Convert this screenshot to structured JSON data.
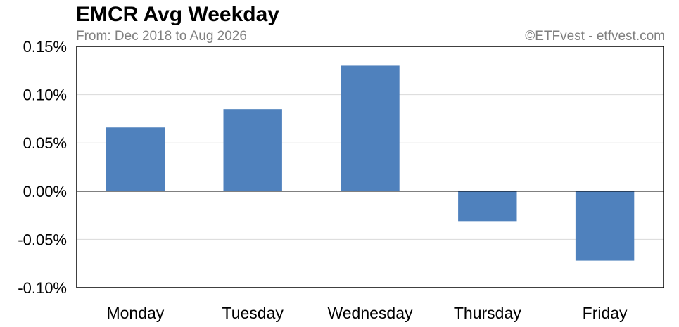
{
  "chart_data": {
    "type": "bar",
    "title": "EMCR Avg Weekday",
    "subtitle": "From: Dec 2018 to Aug 2026",
    "credit": "©ETFvest - etfvest.com",
    "categories": [
      "Monday",
      "Tuesday",
      "Wednesday",
      "Thursday",
      "Friday"
    ],
    "values": [
      0.066,
      0.085,
      0.13,
      -0.031,
      -0.072
    ],
    "value_unit": "%",
    "ylim": [
      -0.1,
      0.15
    ],
    "yticks": [
      "0.15%",
      "0.10%",
      "0.05%",
      "0.00%",
      "-0.05%",
      "-0.10%"
    ],
    "ytick_values": [
      0.15,
      0.1,
      0.05,
      0.0,
      -0.05,
      -0.1
    ],
    "grid": true,
    "bar_color": "#4f81bd"
  }
}
